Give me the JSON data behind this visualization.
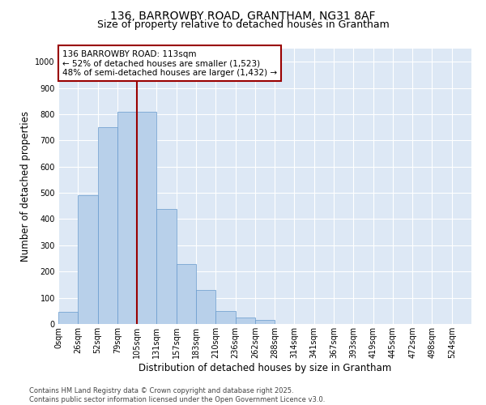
{
  "title1": "136, BARROWBY ROAD, GRANTHAM, NG31 8AF",
  "title2": "Size of property relative to detached houses in Grantham",
  "xlabel": "Distribution of detached houses by size in Grantham",
  "ylabel": "Number of detached properties",
  "bin_labels": [
    "0sqm",
    "26sqm",
    "52sqm",
    "79sqm",
    "105sqm",
    "131sqm",
    "157sqm",
    "183sqm",
    "210sqm",
    "236sqm",
    "262sqm",
    "288sqm",
    "314sqm",
    "341sqm",
    "367sqm",
    "393sqm",
    "419sqm",
    "445sqm",
    "472sqm",
    "498sqm",
    "524sqm"
  ],
  "bar_values": [
    45,
    490,
    750,
    810,
    810,
    440,
    230,
    130,
    50,
    25,
    15,
    0,
    0,
    0,
    0,
    0,
    0,
    0,
    0,
    0,
    0
  ],
  "bar_color": "#b8d0ea",
  "bar_edge_color": "#6699cc",
  "vline_color": "#990000",
  "annotation_text": "136 BARROWBY ROAD: 113sqm\n← 52% of detached houses are smaller (1,523)\n48% of semi-detached houses are larger (1,432) →",
  "annotation_box_color": "#ffffff",
  "annotation_box_edge": "#990000",
  "ylim": [
    0,
    1050
  ],
  "yticks": [
    0,
    100,
    200,
    300,
    400,
    500,
    600,
    700,
    800,
    900,
    1000
  ],
  "background_color": "#dde8f5",
  "footer": "Contains HM Land Registry data © Crown copyright and database right 2025.\nContains public sector information licensed under the Open Government Licence v3.0.",
  "title_fontsize": 10,
  "subtitle_fontsize": 9,
  "tick_fontsize": 7,
  "ylabel_fontsize": 8.5,
  "xlabel_fontsize": 8.5,
  "annotation_fontsize": 7.5,
  "footer_fontsize": 6
}
